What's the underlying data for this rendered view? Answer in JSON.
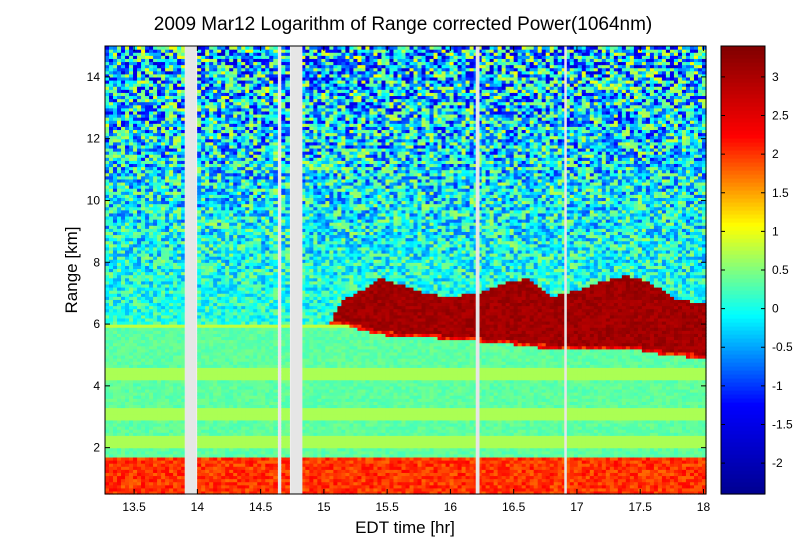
{
  "chart_data": {
    "type": "heatmap",
    "title": "2009 Mar12  Logarithm of Range corrected Power(1064nm)",
    "xlabel": "EDT time [hr]",
    "ylabel": "Range [km]",
    "xlim": [
      13.27,
      18.02
    ],
    "ylim": [
      0.5,
      15.0
    ],
    "x_ticks": [
      "13.5",
      "14",
      "14.5",
      "15",
      "15.5",
      "16",
      "16.5",
      "17",
      "17.5",
      "18"
    ],
    "x_tick_values": [
      13.5,
      14,
      14.5,
      15,
      15.5,
      16,
      16.5,
      17,
      17.5,
      18
    ],
    "y_ticks": [
      "2",
      "4",
      "6",
      "8",
      "10",
      "12",
      "14"
    ],
    "y_tick_values": [
      2,
      4,
      6,
      8,
      10,
      12,
      14
    ],
    "colorbar": {
      "range": [
        -2.4,
        3.4
      ],
      "ticks": [
        "-2",
        "-1.5",
        "-1",
        "-0.5",
        "0",
        "0.5",
        "1",
        "1.5",
        "2",
        "2.5",
        "3"
      ],
      "tick_values": [
        -2,
        -1.5,
        -1,
        -0.5,
        0,
        0.5,
        1,
        1.5,
        2,
        2.5,
        3
      ]
    },
    "colormap": [
      "#00008f",
      "#0000ff",
      "#00ffff",
      "#ffff00",
      "#ff0000",
      "#800000"
    ],
    "data_gaps": [
      [
        13.9,
        13.99
      ],
      [
        14.64,
        14.66
      ],
      [
        14.74,
        14.83
      ],
      [
        16.2,
        16.23
      ],
      [
        16.9,
        16.92
      ]
    ],
    "cloud_base_km": [
      [
        15.05,
        6.0
      ],
      [
        15.2,
        5.95
      ],
      [
        15.4,
        5.7
      ],
      [
        15.6,
        5.6
      ],
      [
        15.8,
        5.6
      ],
      [
        16.0,
        5.5
      ],
      [
        16.2,
        5.45
      ],
      [
        16.5,
        5.35
      ],
      [
        16.8,
        5.2
      ],
      [
        17.0,
        5.15
      ],
      [
        17.3,
        5.2
      ],
      [
        17.5,
        5.15
      ],
      [
        17.7,
        5.0
      ],
      [
        18.0,
        4.9
      ]
    ],
    "cloud_top_km": [
      [
        15.05,
        6.05
      ],
      [
        15.15,
        6.8
      ],
      [
        15.3,
        7.1
      ],
      [
        15.45,
        7.5
      ],
      [
        15.6,
        7.3
      ],
      [
        15.8,
        7.0
      ],
      [
        16.0,
        6.9
      ],
      [
        16.2,
        7.0
      ],
      [
        16.4,
        7.3
      ],
      [
        16.6,
        7.5
      ],
      [
        16.8,
        6.9
      ],
      [
        17.0,
        7.1
      ],
      [
        17.2,
        7.4
      ],
      [
        17.4,
        7.6
      ],
      [
        17.6,
        7.3
      ],
      [
        17.8,
        6.8
      ],
      [
        18.0,
        6.7
      ]
    ],
    "layer_features_km": [
      {
        "name": "near-ground layer",
        "range": [
          0.5,
          1.7
        ],
        "value": 2.0
      },
      {
        "name": "boundary layer top",
        "height": 6.0,
        "value": 0.8
      },
      {
        "name": "horizontal aerosol bands",
        "heights": [
          2.2,
          3.1,
          4.4
        ],
        "value": 0.6
      }
    ]
  }
}
